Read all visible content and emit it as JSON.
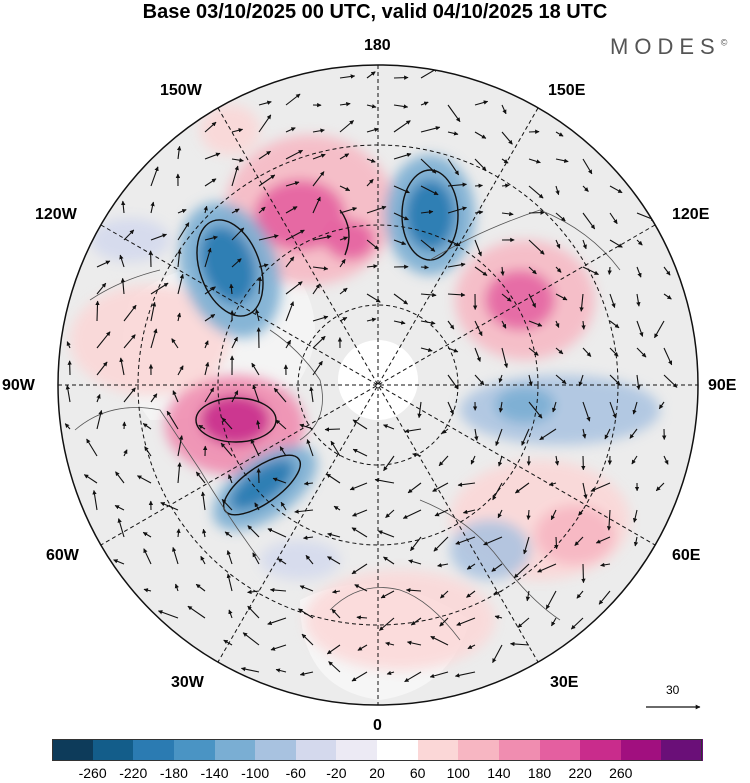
{
  "title": "Base 03/10/2025 00 UTC, valid 04/10/2025 18 UTC",
  "brand": "MODES",
  "brand_mark": "©",
  "map_labels": {
    "lon_180": "180",
    "lon_150w": "150W",
    "lon_150e": "150E",
    "lon_120w": "120W",
    "lon_120e": "120E",
    "lon_90w": "90W",
    "lon_90e": "90E",
    "lon_60w": "60W",
    "lon_60e": "60E",
    "lon_30w": "30W",
    "lon_30e": "30E",
    "lon_0": "0"
  },
  "reference_vector": {
    "label": "30"
  },
  "colorbar": {
    "ticks": [
      "-260",
      "-220",
      "-180",
      "-140",
      "-100",
      "-60",
      "-20",
      "20",
      "60",
      "100",
      "140",
      "180",
      "220",
      "260"
    ],
    "colors": [
      "#0d3b5a",
      "#135d8a",
      "#2b7bb2",
      "#4a94c4",
      "#7aaed3",
      "#a8c2e0",
      "#d4d9ed",
      "#eceaf4",
      "#ffffff",
      "#fbd7d7",
      "#f7b6c2",
      "#f08db0",
      "#e45fa0",
      "#c92c8c",
      "#a10f7f",
      "#6a0f78"
    ]
  },
  "icons": {
    "wind": "wind-vector-icon",
    "reference": "reference-arrow-icon"
  }
}
